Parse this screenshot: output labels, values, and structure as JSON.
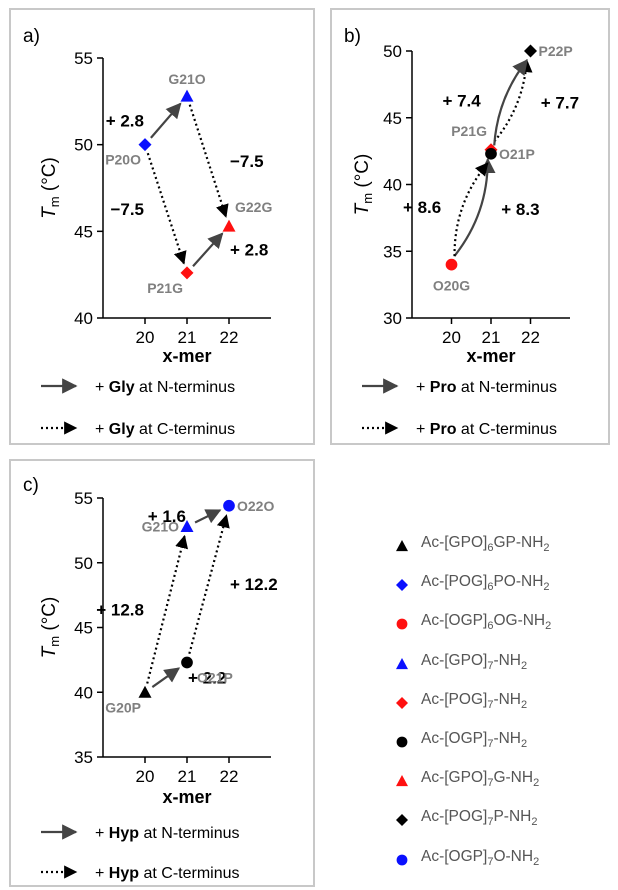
{
  "colors": {
    "blue": "#0a10ff",
    "red": "#ff1010",
    "black": "#000000",
    "gray_label": "#808080",
    "arrow": "#444444",
    "frame": "#c8c8c8"
  },
  "chart_data": [
    {
      "panel": "a)",
      "type": "scatter",
      "xlabel": "x-mer",
      "ylabel_main": "T",
      "ylabel_sub": "m",
      "ylabel_unit": "(°C)",
      "xlim": [
        19,
        23
      ],
      "ylim": [
        40,
        55
      ],
      "xticks": [
        20,
        21,
        22
      ],
      "yticks": [
        40,
        45,
        50,
        55
      ],
      "points": [
        {
          "label": "P20O",
          "x": 20,
          "y": 50.0,
          "marker": "diamond",
          "color": "blue",
          "label_pos": "below-left"
        },
        {
          "label": "G21O",
          "x": 21,
          "y": 52.8,
          "marker": "triangle",
          "color": "blue",
          "label_pos": "above"
        },
        {
          "label": "P21G",
          "x": 21,
          "y": 42.6,
          "marker": "diamond",
          "color": "red",
          "label_pos": "below-left"
        },
        {
          "label": "G22G",
          "x": 22,
          "y": 45.3,
          "marker": "triangle",
          "color": "red",
          "label_pos": "above-right"
        }
      ],
      "arrows": [
        {
          "from": 0,
          "to": 1,
          "style": "solid",
          "value": "+ 2.8",
          "label_side": "left"
        },
        {
          "from": 2,
          "to": 3,
          "style": "solid",
          "value": "+ 2.8",
          "label_side": "right"
        },
        {
          "from": 0,
          "to": 2,
          "style": "dotted",
          "value": "−7.5",
          "label_side": "left"
        },
        {
          "from": 1,
          "to": 3,
          "style": "dotted",
          "value": "−7.5",
          "label_side": "right"
        }
      ],
      "legend": [
        {
          "style": "solid",
          "prefix": "+ ",
          "bold": "Gly",
          "suffix": " at N-terminus"
        },
        {
          "style": "dotted",
          "prefix": "+ ",
          "bold": "Gly",
          "suffix": " at C-terminus"
        }
      ]
    },
    {
      "panel": "b)",
      "type": "scatter",
      "xlabel": "x-mer",
      "ylabel_main": "T",
      "ylabel_sub": "m",
      "ylabel_unit": "(°C)",
      "xlim": [
        19,
        23
      ],
      "ylim": [
        30,
        50
      ],
      "xticks": [
        20,
        21,
        22
      ],
      "yticks": [
        30,
        35,
        40,
        45,
        50
      ],
      "points": [
        {
          "label": "O20G",
          "x": 20,
          "y": 34.0,
          "marker": "circle",
          "color": "red",
          "label_pos": "below"
        },
        {
          "label": "P21G",
          "x": 21,
          "y": 42.6,
          "marker": "diamond",
          "color": "red",
          "label_pos": "above-left"
        },
        {
          "label": "O21P",
          "x": 21,
          "y": 42.3,
          "marker": "circle",
          "color": "black",
          "label_pos": "right"
        },
        {
          "label": "P22P",
          "x": 22,
          "y": 50.0,
          "marker": "diamond",
          "color": "black",
          "label_pos": "right"
        }
      ],
      "arrows": [
        {
          "from": 0,
          "to": 1,
          "style": "solid",
          "value": "+ 8.6",
          "label_side": "left"
        },
        {
          "from": 0,
          "to": 2,
          "style": "dotted",
          "value": "+ 8.3",
          "label_side": "right"
        },
        {
          "from": 1,
          "to": 3,
          "style": "dotted",
          "value": "+ 7.4",
          "label_side": "left"
        },
        {
          "from": 2,
          "to": 3,
          "style": "solid",
          "value": "+ 7.7",
          "label_side": "right"
        }
      ],
      "legend": [
        {
          "style": "solid",
          "prefix": "+ ",
          "bold": "Pro",
          "suffix": " at N-terminus"
        },
        {
          "style": "dotted",
          "prefix": "+ ",
          "bold": "Pro",
          "suffix": " at C-terminus"
        }
      ]
    },
    {
      "panel": "c)",
      "type": "scatter",
      "xlabel": "x-mer",
      "ylabel_main": "T",
      "ylabel_sub": "m",
      "ylabel_unit": "(°C)",
      "xlim": [
        19,
        23
      ],
      "ylim": [
        35,
        55
      ],
      "xticks": [
        20,
        21,
        22
      ],
      "yticks": [
        35,
        40,
        45,
        50,
        55
      ],
      "points": [
        {
          "label": "G20P",
          "x": 20,
          "y": 40.0,
          "marker": "triangle",
          "color": "black",
          "label_pos": "below-left"
        },
        {
          "label": "G21O",
          "x": 21,
          "y": 52.8,
          "marker": "triangle",
          "color": "blue",
          "label_pos": "left"
        },
        {
          "label": "O21P",
          "x": 21,
          "y": 42.3,
          "marker": "circle",
          "color": "black",
          "label_pos": "below-right"
        },
        {
          "label": "O22O",
          "x": 22,
          "y": 54.4,
          "marker": "circle",
          "color": "blue",
          "label_pos": "right"
        }
      ],
      "arrows": [
        {
          "from": 0,
          "to": 2,
          "style": "solid",
          "value": "+ 2.2",
          "label_side": "right"
        },
        {
          "from": 1,
          "to": 3,
          "style": "solid",
          "value": "+ 1.6",
          "label_side": "left"
        },
        {
          "from": 0,
          "to": 1,
          "style": "dotted",
          "value": "+ 12.8",
          "label_side": "left"
        },
        {
          "from": 2,
          "to": 3,
          "style": "dotted",
          "value": "+ 12.2",
          "label_side": "right"
        }
      ],
      "legend": [
        {
          "style": "solid",
          "prefix": "+ ",
          "bold": "Hyp",
          "suffix": " at  N-terminus"
        },
        {
          "style": "dotted",
          "prefix": "+ ",
          "bold": "Hyp",
          "suffix": " at C-terminus"
        }
      ]
    }
  ],
  "series_legend": [
    {
      "marker": "triangle",
      "color": "black",
      "main": "Ac-[GPO]",
      "sub": "6",
      "main2": "GP-NH",
      "sub2": "2"
    },
    {
      "marker": "diamond",
      "color": "blue",
      "main": "Ac-[POG]",
      "sub": "6",
      "main2": "PO-NH",
      "sub2": "2"
    },
    {
      "marker": "circle",
      "color": "red",
      "main": "Ac-[OGP]",
      "sub": "6",
      "main2": "OG-NH",
      "sub2": "2"
    },
    {
      "marker": "triangle",
      "color": "blue",
      "main": "Ac-[GPO]",
      "sub": "7",
      "main2": "-NH",
      "sub2": "2"
    },
    {
      "marker": "diamond",
      "color": "red",
      "main": "Ac-[POG]",
      "sub": "7",
      "main2": "-NH",
      "sub2": "2"
    },
    {
      "marker": "circle",
      "color": "black",
      "main": "Ac-[OGP]",
      "sub": "7",
      "main2": "-NH",
      "sub2": "2"
    },
    {
      "marker": "triangle",
      "color": "red",
      "main": "Ac-[GPO]",
      "sub": "7",
      "main2": "G-NH",
      "sub2": "2"
    },
    {
      "marker": "diamond",
      "color": "black",
      "main": "Ac-[POG]",
      "sub": "7",
      "main2": "P-NH",
      "sub2": "2"
    },
    {
      "marker": "circle",
      "color": "blue",
      "main": "Ac-[OGP]",
      "sub": "7",
      "main2": "O-NH",
      "sub2": "2"
    }
  ]
}
